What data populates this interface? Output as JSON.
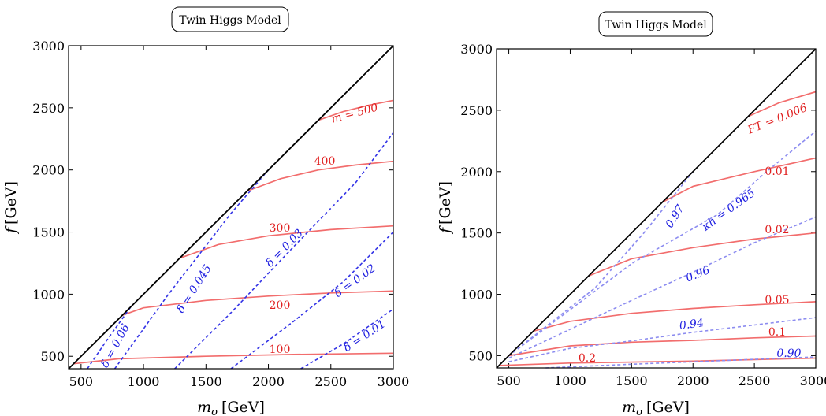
{
  "chart_data": [
    {
      "type": "line",
      "title": "Twin Higgs Model",
      "xlabel": "m_σ [GeV]",
      "ylabel": "f [GeV]",
      "xlim": [
        400,
        3000
      ],
      "ylim": [
        400,
        3000
      ],
      "xticks": [
        500,
        1000,
        1500,
        2000,
        2500,
        3000
      ],
      "yticks": [
        500,
        1000,
        1500,
        2000,
        2500,
        3000
      ],
      "boundary": {
        "name": "m_σ = f",
        "points": [
          [
            400,
            400
          ],
          [
            3000,
            3000
          ]
        ],
        "color": "#000000"
      },
      "series": [
        {
          "name": "m = 500",
          "label": "m = 500",
          "color": "#f26d6d",
          "style": "solid",
          "points": [
            [
              2400,
              2400
            ],
            [
              2600,
              2470
            ],
            [
              2800,
              2520
            ],
            [
              3000,
              2560
            ]
          ]
        },
        {
          "name": "400",
          "label": "400",
          "color": "#f26d6d",
          "style": "solid",
          "points": [
            [
              1830,
              1830
            ],
            [
              2100,
              1930
            ],
            [
              2400,
              2000
            ],
            [
              2700,
              2040
            ],
            [
              3000,
              2070
            ]
          ]
        },
        {
          "name": "300",
          "label": "300",
          "color": "#f26d6d",
          "style": "solid",
          "points": [
            [
              1290,
              1290
            ],
            [
              1600,
              1400
            ],
            [
              2000,
              1470
            ],
            [
              2500,
              1520
            ],
            [
              3000,
              1550
            ]
          ]
        },
        {
          "name": "200",
          "label": "200",
          "color": "#f26d6d",
          "style": "solid",
          "points": [
            [
              830,
              830
            ],
            [
              1000,
              890
            ],
            [
              1500,
              950
            ],
            [
              2000,
              985
            ],
            [
              2500,
              1010
            ],
            [
              3000,
              1025
            ]
          ]
        },
        {
          "name": "100",
          "label": "100",
          "color": "#f26d6d",
          "style": "solid",
          "points": [
            [
              440,
              440
            ],
            [
              800,
              480
            ],
            [
              1500,
              500
            ],
            [
              2200,
              515
            ],
            [
              3000,
              525
            ]
          ]
        },
        {
          "name": "δ = 0.06",
          "label": "δ = 0.06",
          "color": "#3434e6",
          "style": "dashed",
          "points": [
            [
              550,
              400
            ],
            [
              700,
              620
            ],
            [
              900,
              900
            ]
          ]
        },
        {
          "name": "δ = 0.045",
          "label": "δ = 0.045",
          "color": "#3434e6",
          "style": "dashed",
          "points": [
            [
              770,
              400
            ],
            [
              1200,
              1000
            ],
            [
              1700,
              1650
            ],
            [
              2000,
              2000
            ]
          ]
        },
        {
          "name": "δ = 0.03",
          "label": "δ = 0.03",
          "color": "#3434e6",
          "style": "dashed",
          "points": [
            [
              1250,
              400
            ],
            [
              1700,
              850
            ],
            [
              2200,
              1380
            ],
            [
              2700,
              1900
            ],
            [
              3000,
              2300
            ]
          ]
        },
        {
          "name": "δ = 0.02",
          "label": "δ = 0.02",
          "color": "#3434e6",
          "style": "dashed",
          "points": [
            [
              1700,
              400
            ],
            [
              2200,
              780
            ],
            [
              2600,
              1100
            ],
            [
              3000,
              1500
            ]
          ]
        },
        {
          "name": "δ = 0.01",
          "label": "δ = 0.01",
          "color": "#3434e6",
          "style": "dashed",
          "points": [
            [
              2260,
              400
            ],
            [
              2600,
              600
            ],
            [
              3000,
              880
            ]
          ]
        }
      ]
    },
    {
      "type": "line",
      "title": "Twin Higgs Model",
      "xlabel": "m_σ [GeV]",
      "ylabel": "f [GeV]",
      "xlim": [
        400,
        3000
      ],
      "ylim": [
        400,
        3000
      ],
      "xticks": [
        500,
        1000,
        1500,
        2000,
        2500,
        3000
      ],
      "yticks": [
        500,
        1000,
        1500,
        2000,
        2500,
        3000
      ],
      "boundary": {
        "name": "m_σ = f",
        "points": [
          [
            400,
            400
          ],
          [
            3000,
            3000
          ]
        ],
        "color": "#000000"
      },
      "series": [
        {
          "name": "FT = 0.006",
          "label": "FT = 0.006",
          "color": "#f26d6d",
          "style": "solid",
          "points": [
            [
              2450,
              2450
            ],
            [
              2700,
              2560
            ],
            [
              3000,
              2650
            ]
          ]
        },
        {
          "name": "0.01",
          "label": "0.01",
          "color": "#f26d6d",
          "style": "solid",
          "points": [
            [
              1750,
              1750
            ],
            [
              2000,
              1880
            ],
            [
              2500,
              2000
            ],
            [
              3000,
              2110
            ]
          ]
        },
        {
          "name": "0.02",
          "label": "0.02",
          "color": "#f26d6d",
          "style": "solid",
          "points": [
            [
              1150,
              1150
            ],
            [
              1500,
              1290
            ],
            [
              2000,
              1380
            ],
            [
              2500,
              1450
            ],
            [
              3000,
              1500
            ]
          ]
        },
        {
          "name": "0.05",
          "label": "0.05",
          "color": "#f26d6d",
          "style": "solid",
          "points": [
            [
              700,
              700
            ],
            [
              1000,
              780
            ],
            [
              1500,
              845
            ],
            [
              2000,
              885
            ],
            [
              2500,
              915
            ],
            [
              3000,
              940
            ]
          ]
        },
        {
          "name": "0.1",
          "label": "0.1",
          "color": "#f26d6d",
          "style": "solid",
          "points": [
            [
              500,
              500
            ],
            [
              1000,
              580
            ],
            [
              1500,
              610
            ],
            [
              2000,
              625
            ],
            [
              2500,
              645
            ],
            [
              3000,
              660
            ]
          ]
        },
        {
          "name": "0.2",
          "label": "0.2",
          "color": "#f26d6d",
          "style": "solid",
          "points": [
            [
              420,
              420
            ],
            [
              1000,
              440
            ],
            [
              2000,
              455
            ],
            [
              3000,
              480
            ]
          ]
        },
        {
          "name": "κ_h = 0.965",
          "label": "κ_h = 0.965",
          "color": "#8c8cf0",
          "style": "dashed",
          "points": [
            [
              500,
              500
            ],
            [
              1500,
              1250
            ],
            [
              2200,
              1650
            ],
            [
              2600,
              2000
            ],
            [
              3000,
              2330
            ]
          ]
        },
        {
          "name": "0.97",
          "label": "0.97",
          "color": "#8c8cf0",
          "style": "dashed",
          "points": [
            [
              500,
              500
            ],
            [
              1200,
              1050
            ],
            [
              1600,
              1500
            ],
            [
              2000,
              2000
            ]
          ]
        },
        {
          "name": "0.96",
          "label": "0.96",
          "color": "#8c8cf0",
          "style": "dashed",
          "points": [
            [
              500,
              480
            ],
            [
              1500,
              950
            ],
            [
              2000,
              1180
            ],
            [
              2500,
              1420
            ],
            [
              3000,
              1630
            ]
          ]
        },
        {
          "name": "0.94",
          "label": "0.94",
          "color": "#8c8cf0",
          "style": "dashed",
          "points": [
            [
              500,
              450
            ],
            [
              1000,
              560
            ],
            [
              1500,
              620
            ],
            [
              2000,
              690
            ],
            [
              2500,
              750
            ],
            [
              3000,
              810
            ]
          ]
        },
        {
          "name": "0.90",
          "label": "0.90",
          "color": "#8c8cf0",
          "style": "dashed",
          "points": [
            [
              800,
              400
            ],
            [
              1500,
              430
            ],
            [
              2000,
              450
            ],
            [
              2500,
              470
            ],
            [
              3000,
              490
            ]
          ]
        }
      ]
    }
  ],
  "panels": [
    {
      "title": "Twin Higgs Model",
      "xlabel": "m",
      "xlabel_sub": "σ",
      "xlabel_unit": "[GeV]",
      "ylabel": "f",
      "ylabel_unit": "[GeV]",
      "xtick_labels": [
        "500",
        "1000",
        "1500",
        "2000",
        "2500",
        "3000"
      ],
      "ytick_labels": [
        "500",
        "1000",
        "1500",
        "2000",
        "2500",
        "3000"
      ],
      "labels": {
        "m500": "m = 500",
        "c400": "400",
        "c300": "300",
        "c200": "200",
        "c100": "100",
        "d006": "δ = 0.06",
        "d0045": "δ = 0.045",
        "d003": "δ = 0.03",
        "d002": "δ = 0.02",
        "d001": "δ = 0.01"
      }
    },
    {
      "title": "Twin Higgs Model",
      "xlabel": "m",
      "xlabel_sub": "σ",
      "xlabel_unit": "[GeV]",
      "ylabel": "f",
      "ylabel_unit": "[GeV]",
      "xtick_labels": [
        "500",
        "1000",
        "1500",
        "2000",
        "2500",
        "3000"
      ],
      "ytick_labels": [
        "500",
        "1000",
        "1500",
        "2000",
        "2500",
        "3000"
      ],
      "labels": {
        "ft0006": "FT = 0.006",
        "ft001": "0.01",
        "ft002": "0.02",
        "ft005": "0.05",
        "ft01": "0.1",
        "ft02": "0.2",
        "kh0965": "κh = 0.965",
        "kh097": "0.97",
        "kh096": "0.96",
        "kh094": "0.94",
        "kh090": "0.90"
      }
    }
  ],
  "colors": {
    "contour_red": "#f26d6d",
    "delta_blue": "#3434e6",
    "kappa_blue": "#8c8cf0",
    "boundary": "#000000"
  }
}
